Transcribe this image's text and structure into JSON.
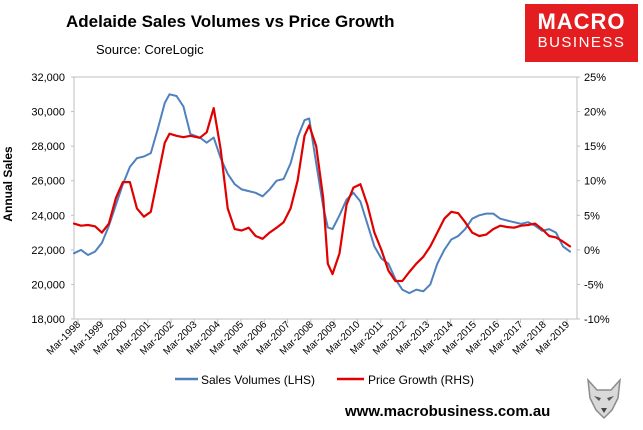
{
  "chart_data": {
    "type": "line",
    "title": "Adelaide Sales Volumes vs Price Growth",
    "subtitle": "Source: CoreLogic",
    "ylabel_left": "Annual Sales",
    "y_left_range": [
      18000,
      32000
    ],
    "y_left_ticks": [
      "18,000",
      "20,000",
      "22,000",
      "24,000",
      "26,000",
      "28,000",
      "30,000",
      "32,000"
    ],
    "y_right_range": [
      -10,
      25
    ],
    "y_right_ticks": [
      "-10%",
      "-5%",
      "0%",
      "5%",
      "10%",
      "15%",
      "20%",
      "25%"
    ],
    "x_range": [
      1998.0,
      2019.6
    ],
    "x_ticks": [
      "Mar-1998",
      "Mar-1999",
      "Mar-2000",
      "Mar-2001",
      "Mar-2002",
      "Mar-2003",
      "Mar-2004",
      "Mar-2005",
      "Mar-2006",
      "Mar-2007",
      "Mar-2008",
      "Mar-2009",
      "Mar-2010",
      "Mar-2011",
      "Mar-2012",
      "Mar-2013",
      "Mar-2014",
      "Mar-2015",
      "Mar-2016",
      "Mar-2017",
      "Mar-2018",
      "Mar-2019"
    ],
    "series": [
      {
        "name": "Sales Volumes (LHS)",
        "axis": "left",
        "color": "#4f81bd",
        "x": [
          1998.0,
          1998.3,
          1998.6,
          1998.9,
          1999.2,
          1999.5,
          1999.8,
          2000.1,
          2000.4,
          2000.7,
          2001.0,
          2001.3,
          2001.6,
          2001.9,
          2002.1,
          2002.4,
          2002.7,
          2003.0,
          2003.4,
          2003.7,
          2004.0,
          2004.3,
          2004.6,
          2004.9,
          2005.2,
          2005.5,
          2005.8,
          2006.1,
          2006.4,
          2006.7,
          2007.0,
          2007.3,
          2007.6,
          2007.9,
          2008.1,
          2008.4,
          2008.7,
          2008.9,
          2009.1,
          2009.4,
          2009.7,
          2010.0,
          2010.3,
          2010.6,
          2010.9,
          2011.2,
          2011.5,
          2011.8,
          2012.1,
          2012.4,
          2012.7,
          2013.0,
          2013.3,
          2013.6,
          2013.9,
          2014.2,
          2014.5,
          2014.8,
          2015.1,
          2015.4,
          2015.7,
          2016.0,
          2016.3,
          2016.6,
          2016.9,
          2017.2,
          2017.5,
          2017.8,
          2018.1,
          2018.4,
          2018.7,
          2019.0,
          2019.3
        ],
        "values": [
          21800,
          22000,
          21700,
          21900,
          22400,
          23400,
          24600,
          25800,
          26800,
          27300,
          27400,
          27600,
          29000,
          30500,
          31000,
          30900,
          30300,
          28700,
          28500,
          28200,
          28500,
          27300,
          26400,
          25800,
          25500,
          25400,
          25300,
          25100,
          25500,
          26000,
          26100,
          27000,
          28500,
          29500,
          29600,
          27000,
          24500,
          23300,
          23200,
          24000,
          24900,
          25300,
          24800,
          23500,
          22200,
          21500,
          21200,
          20300,
          19700,
          19500,
          19700,
          19600,
          20000,
          21200,
          22000,
          22600,
          22800,
          23200,
          23800,
          24000,
          24100,
          24100,
          23800,
          23700,
          23600,
          23500,
          23600,
          23400,
          23100,
          23200,
          23000,
          22200,
          21900
        ]
      },
      {
        "name": "Price Growth (RHS)",
        "axis": "right",
        "color": "#e00000",
        "x": [
          1998.0,
          1998.3,
          1998.6,
          1998.9,
          1999.2,
          1999.5,
          1999.8,
          2000.1,
          2000.4,
          2000.7,
          2001.0,
          2001.3,
          2001.6,
          2001.9,
          2002.1,
          2002.4,
          2002.7,
          2003.0,
          2003.4,
          2003.7,
          2004.0,
          2004.3,
          2004.6,
          2004.9,
          2005.2,
          2005.5,
          2005.8,
          2006.1,
          2006.4,
          2006.7,
          2007.0,
          2007.3,
          2007.6,
          2007.9,
          2008.1,
          2008.4,
          2008.7,
          2008.9,
          2009.1,
          2009.4,
          2009.7,
          2010.0,
          2010.3,
          2010.6,
          2010.9,
          2011.2,
          2011.5,
          2011.8,
          2012.1,
          2012.4,
          2012.7,
          2013.0,
          2013.3,
          2013.6,
          2013.9,
          2014.2,
          2014.5,
          2014.8,
          2015.1,
          2015.4,
          2015.7,
          2016.0,
          2016.3,
          2016.6,
          2016.9,
          2017.2,
          2017.5,
          2017.8,
          2018.1,
          2018.4,
          2018.7,
          2019.0,
          2019.3
        ],
        "values": [
          3.8,
          3.5,
          3.6,
          3.4,
          2.5,
          3.8,
          7.5,
          9.8,
          9.8,
          6.0,
          4.8,
          5.5,
          10.5,
          15.5,
          16.8,
          16.5,
          16.3,
          16.5,
          16.2,
          17.0,
          20.5,
          14.5,
          6.0,
          3.0,
          2.8,
          3.2,
          2.0,
          1.6,
          2.5,
          3.2,
          4.0,
          6.0,
          10.0,
          16.5,
          18.0,
          15.0,
          7.5,
          -2.0,
          -3.5,
          -0.5,
          6.5,
          9.0,
          9.5,
          6.5,
          2.5,
          0.0,
          -3.0,
          -4.5,
          -4.5,
          -3.2,
          -2.0,
          -1.0,
          0.5,
          2.5,
          4.5,
          5.5,
          5.3,
          4.0,
          2.5,
          2.0,
          2.2,
          3.0,
          3.5,
          3.3,
          3.2,
          3.5,
          3.6,
          3.8,
          3.0,
          2.0,
          1.8,
          1.2,
          0.5
        ]
      }
    ],
    "legend": "bottom"
  },
  "logo": {
    "line1": "MACRO",
    "line2": "BUSINESS"
  },
  "footer": {
    "url": "www.macrobusiness.com.au"
  }
}
